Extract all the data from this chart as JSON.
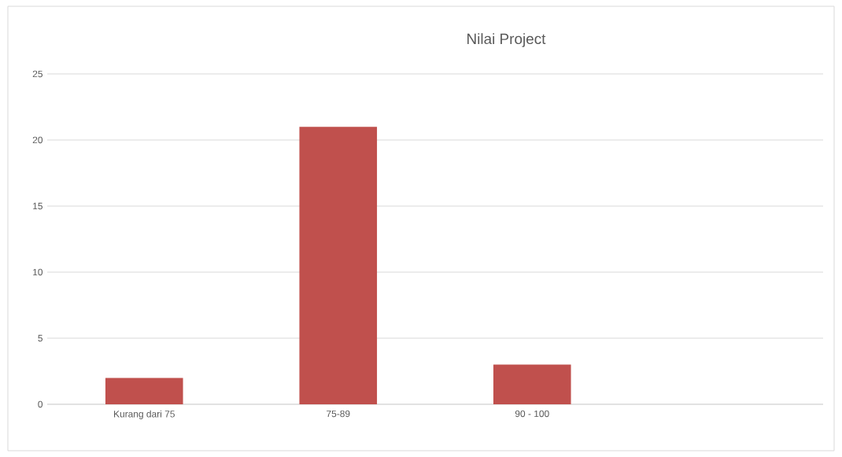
{
  "chart_data": {
    "type": "bar",
    "title": "Nilai Project",
    "categories": [
      "Kurang dari 75",
      "75-89",
      "90 - 100"
    ],
    "values": [
      2,
      21,
      3
    ],
    "color": "#c0504d",
    "ylim": [
      0,
      25
    ],
    "yticks": [
      0,
      5,
      10,
      15,
      20,
      25
    ],
    "grid": "y"
  }
}
